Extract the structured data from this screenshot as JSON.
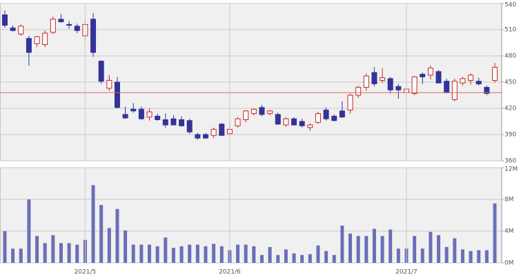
{
  "chart_data": [
    {
      "type": "candlestick",
      "up_color": "#cc2222",
      "down_color": "#333399",
      "open": [
        527,
        512,
        505,
        500,
        494,
        493,
        507,
        522,
        516,
        514,
        503,
        522,
        474,
        443,
        450,
        413,
        419,
        419,
        410,
        411,
        407,
        408,
        407,
        406,
        390,
        390,
        389,
        402,
        391,
        400,
        407,
        414,
        421,
        414,
        413,
        401,
        408,
        405,
        398,
        404,
        418,
        411,
        417,
        418,
        435,
        444,
        461,
        452,
        454,
        445,
        438,
        437,
        459,
        458,
        462,
        451,
        430,
        449,
        452,
        451,
        444,
        452
      ],
      "high": [
        532,
        515,
        516,
        503,
        503,
        509,
        525,
        528,
        520,
        517,
        521,
        529,
        475,
        458,
        456,
        422,
        426,
        422,
        420,
        414,
        414,
        412,
        411,
        408,
        392,
        392,
        398,
        403,
        403,
        410,
        418,
        420,
        424,
        418,
        415,
        410,
        410,
        408,
        403,
        416,
        421,
        413,
        428,
        437,
        446,
        460,
        467,
        466,
        456,
        448,
        445,
        457,
        461,
        469,
        464,
        454,
        454,
        456,
        460,
        455,
        446,
        472
      ],
      "low": [
        512,
        508,
        503,
        469,
        490,
        490,
        505,
        518,
        511,
        506,
        497,
        479,
        448,
        440,
        420,
        408,
        415,
        407,
        406,
        406,
        398,
        401,
        399,
        391,
        384,
        385,
        386,
        389,
        388,
        398,
        404,
        412,
        411,
        412,
        401,
        399,
        400,
        398,
        394,
        402,
        406,
        405,
        409,
        414,
        432,
        440,
        445,
        449,
        437,
        431,
        435,
        435,
        448,
        453,
        449,
        437,
        428,
        446,
        447,
        446,
        435,
        449
      ],
      "close": [
        515,
        509,
        514,
        484,
        502,
        506,
        522,
        519,
        515,
        509,
        516,
        484,
        451,
        452,
        421,
        409,
        417,
        408,
        416,
        407,
        401,
        401,
        400,
        393,
        386,
        386,
        396,
        389,
        396,
        408,
        417,
        419,
        413,
        417,
        402,
        408,
        401,
        400,
        401,
        414,
        408,
        406,
        410,
        435,
        444,
        457,
        448,
        455,
        441,
        441,
        442,
        456,
        456,
        466,
        449,
        438,
        451,
        454,
        458,
        448,
        437,
        467
      ],
      "hline": 438,
      "hline_color": "#dd6666",
      "ylim": [
        360,
        540
      ],
      "yticks": [
        360,
        390,
        420,
        450,
        480,
        510,
        540
      ],
      "grid": true
    },
    {
      "type": "bar",
      "color": "#6a6fb8",
      "categories": [
        null,
        null,
        null,
        null,
        null,
        null,
        null,
        null,
        null,
        null,
        "2021/5",
        null,
        null,
        null,
        null,
        null,
        null,
        null,
        null,
        null,
        null,
        null,
        null,
        null,
        null,
        null,
        null,
        null,
        "2021/6",
        null,
        null,
        null,
        null,
        null,
        null,
        null,
        null,
        null,
        null,
        null,
        null,
        null,
        null,
        null,
        null,
        null,
        null,
        null,
        null,
        null,
        "2021/7",
        null,
        null,
        null,
        null,
        null,
        null,
        null,
        null,
        null,
        null,
        null
      ],
      "values": [
        4.0,
        1.8,
        1.8,
        8.0,
        3.4,
        2.5,
        3.5,
        2.5,
        2.5,
        2.3,
        2.9,
        9.8,
        7.3,
        4.4,
        6.8,
        4.1,
        2.3,
        2.3,
        2.3,
        2.1,
        3.2,
        1.9,
        2.1,
        2.3,
        2.3,
        2.1,
        2.4,
        2.1,
        1.6,
        2.3,
        2.3,
        2.1,
        1.0,
        2.0,
        1.0,
        1.7,
        1.2,
        1.0,
        1.1,
        2.2,
        1.5,
        1.0,
        4.7,
        3.7,
        3.4,
        3.4,
        4.3,
        3.4,
        4.2,
        1.8,
        1.8,
        3.4,
        1.8,
        3.9,
        3.5,
        2.0,
        3.1,
        1.7,
        1.5,
        1.6,
        1.6,
        7.5
      ],
      "ylim": [
        0,
        12
      ],
      "yticks": [
        {
          "value": 0,
          "label": "0M"
        },
        {
          "value": 4,
          "label": "4M"
        },
        {
          "value": 8,
          "label": "8M"
        },
        {
          "value": 12,
          "label": "12M"
        }
      ],
      "grid": true
    }
  ]
}
